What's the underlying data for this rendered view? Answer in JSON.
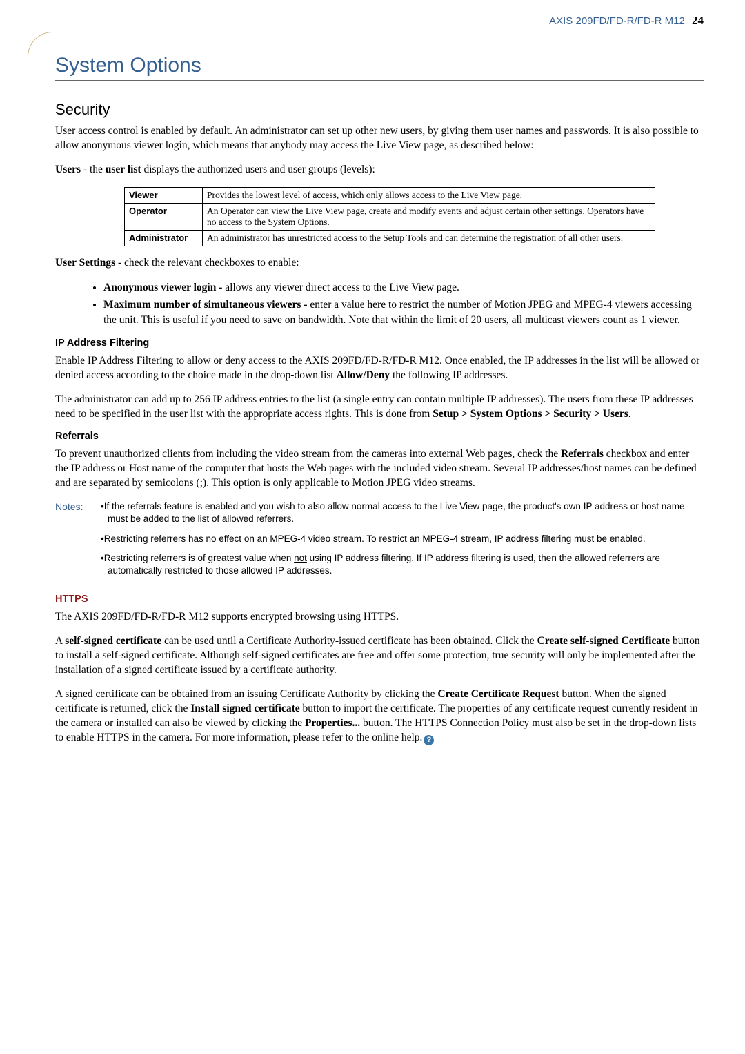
{
  "header": {
    "product": "AXIS 209FD/FD-R/FD-R M12",
    "page_number": "24"
  },
  "title": "System Options",
  "security": {
    "heading": "Security",
    "intro": "User access control is enabled by default. An administrator can set up other new users, by giving them user names and passwords. It is also possible to allow anonymous viewer login, which means that anybody may access the Live View page, as described below:",
    "users_label": "Users",
    "users_line_rest": " - the ",
    "users_bold2": "user list",
    "users_line_tail": " displays the authorized users and user groups (levels):",
    "roles": [
      {
        "name": "Viewer",
        "desc": "Provides the lowest level of access, which only allows access to the Live View page."
      },
      {
        "name": "Operator",
        "desc": "An Operator can view the Live View page, create and modify events and adjust certain other settings. Operators have no access to the System Options."
      },
      {
        "name": "Administrator",
        "desc": "An administrator has unrestricted access to the Setup Tools and can determine the registration of all other users."
      }
    ],
    "user_settings_label": "User Settings",
    "user_settings_tail": " - check the relevant checkboxes to enable:",
    "bullets": [
      {
        "label": "Anonymous viewer login -",
        "rest": " allows any viewer direct access to the Live View page."
      },
      {
        "label": "Maximum number of simultaneous viewers -",
        "rest": " enter a value here to restrict the number of Motion JPEG and MPEG-4 viewers accessing the unit. This is useful if you need to save on bandwidth. Note that within the limit of 20 users, ",
        "underlined": "all",
        "rest2": " multicast viewers count as 1 viewer."
      }
    ]
  },
  "ipfilter": {
    "heading": "IP Address Filtering",
    "p1a": "Enable IP Address Filtering to allow or deny access to the AXIS 209FD/FD-R/FD-R M12",
    "p1b": ". Once enabled, the IP addresses in the list will be allowed or denied access according to the choice made in the drop-down list ",
    "p1bold": "Allow/Deny",
    "p1c": " the following IP addresses.",
    "p2a": "The administrator can add up to 256 IP address entries to the list (a single entry can contain multiple IP addresses). The users from these IP addresses need to be specified in the user list with the appropriate access rights. This is done from ",
    "p2bold": "Setup > System Options > Security > Users",
    "p2tail": "."
  },
  "referrals": {
    "heading": "Referrals",
    "p1a": "To prevent unauthorized clients from including the video stream from the cameras into external Web pages, check the ",
    "p1bold": "Referrals",
    "p1b": " checkbox and enter the IP address or Host name of the computer that hosts the Web pages with the included video stream. Several IP addresses/host names can be defined and are separated by semicolons (;). This option is only applicable to Motion JPEG video streams."
  },
  "notes": {
    "label": "Notes:",
    "items": [
      "•If the referrals feature is enabled and you wish to also allow normal access to the Live View page, the product's own IP address or host name must be added to the list of allowed referrers.",
      "•Restricting referrers has no effect on an MPEG-4 video stream. To restrict an MPEG-4 stream, IP address filtering must be enabled.",
      "•Restricting referrers is of greatest value when |not| using IP address filtering. If IP address filtering is used, then the allowed referrers are automatically restricted to those allowed IP addresses."
    ]
  },
  "https": {
    "heading": "HTTPS",
    "p1": "The AXIS 209FD/FD-R/FD-R M12 supports encrypted browsing using HTTPS.",
    "p2": [
      "A ",
      "self-signed certificate",
      " can be used until a Certificate Authority-issued certificate has been obtained. Click the ",
      "Create self-signed Certificate",
      " button to install a self-signed certificate. Although self-signed certificates are free and offer some protection, true security will only be implemented after the installation of a signed certificate issued by a certificate authority."
    ],
    "p3": [
      "A signed certificate can be obtained from an issuing Certificate Authority by clicking the ",
      "Create Certificate Request",
      " button. When the signed certificate is returned, click the ",
      "Install signed certificate",
      " button to import the certificate. The properties of any certificate request currently resident in the camera or installed can also be viewed by clicking the ",
      "Properties...",
      " button. The HTTPS Connection Policy must also be set in the drop-down lists to enable HTTPS in the camera. For more information, please refer to the online help."
    ]
  },
  "colors": {
    "header_blue": "#356090",
    "rule_tan": "#cfb58a",
    "https_red": "#8b1a1a"
  }
}
